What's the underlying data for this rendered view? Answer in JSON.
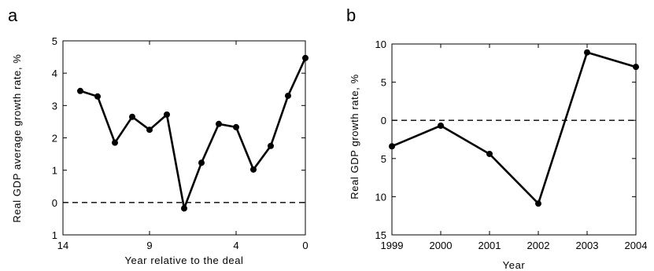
{
  "chart_data": [
    {
      "panel": "a",
      "type": "line",
      "xlabel": "Year relative to the deal",
      "ylabel": "Real GDP average growth rate, %",
      "xlim": [
        14,
        0
      ],
      "x_reversed": true,
      "ylim": [
        -1,
        5
      ],
      "xticks": [
        14,
        9,
        4,
        0
      ],
      "xtick_labels": [
        "14",
        "9",
        "4",
        "0"
      ],
      "yticks": [
        -1,
        0,
        1,
        2,
        3,
        4,
        5
      ],
      "ytick_labels": [
        "1",
        "0",
        "1",
        "2",
        "3",
        "4",
        "5"
      ],
      "reference_line": {
        "y": 0,
        "style": "dashed"
      },
      "grid": false,
      "series": [
        {
          "x": [
            13,
            12,
            11,
            10,
            9,
            8,
            7,
            6,
            5,
            4,
            3,
            2,
            1,
            0
          ],
          "y": [
            3.45,
            3.28,
            1.85,
            2.65,
            2.25,
            2.72,
            -0.18,
            1.23,
            2.43,
            2.33,
            1.02,
            1.75,
            3.3,
            4.47
          ]
        }
      ]
    },
    {
      "panel": "b",
      "type": "line",
      "xlabel": "Year",
      "ylabel": "Real GDP growth rate, %",
      "xlim": [
        1999,
        2004
      ],
      "ylim": [
        -15,
        10
      ],
      "xticks": [
        1999,
        2000,
        2001,
        2002,
        2003,
        2004
      ],
      "xtick_labels": [
        "1999",
        "2000",
        "2001",
        "2002",
        "2003",
        "2004"
      ],
      "yticks": [
        -15,
        -10,
        -5,
        0,
        5,
        10
      ],
      "ytick_labels": [
        "15",
        "10",
        "5",
        "0",
        "5",
        "10"
      ],
      "reference_line": {
        "y": 0,
        "style": "dashed"
      },
      "grid": false,
      "series": [
        {
          "x": [
            1999,
            2000,
            2001,
            2002,
            2003,
            2004
          ],
          "y": [
            -3.4,
            -0.7,
            -4.4,
            -10.9,
            8.9,
            7.0
          ]
        }
      ]
    }
  ]
}
